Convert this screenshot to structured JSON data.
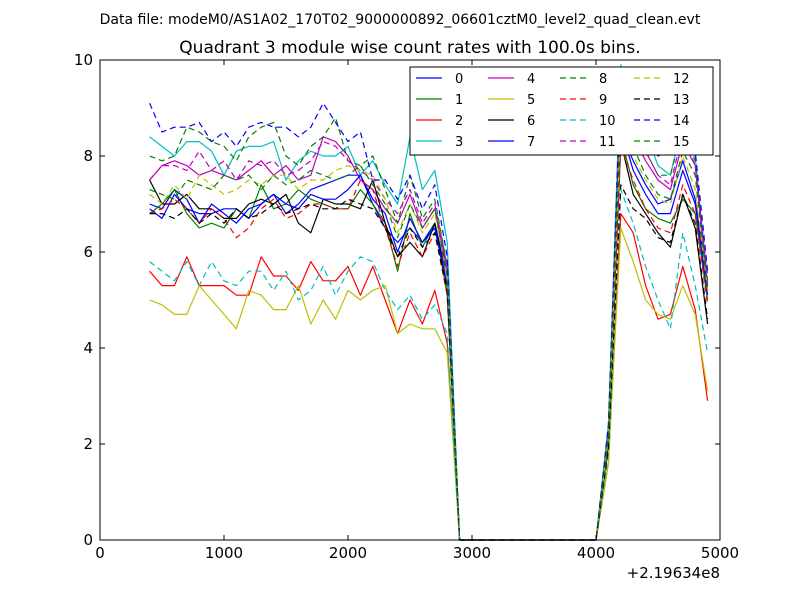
{
  "figure": {
    "suptitle": "Data file: modeM0/AS1A02_170T02_9000000892_06601cztM0_level2_quad_clean.evt"
  },
  "chart_data": {
    "type": "line",
    "title": "Quadrant 3 module wise count rates with 100.0s bins.",
    "xlabel": "",
    "ylabel": "",
    "x_offset_label": "+2.19634e8",
    "xlim": [
      0,
      5000
    ],
    "ylim": [
      0,
      10
    ],
    "xticks": [
      0,
      1000,
      2000,
      3000,
      4000,
      5000
    ],
    "yticks": [
      0,
      2,
      4,
      6,
      8,
      10
    ],
    "grid": false,
    "legend_position": "top-right",
    "legend_columns": 4,
    "x": [
      400,
      500,
      600,
      700,
      800,
      900,
      1000,
      1100,
      1200,
      1300,
      1400,
      1500,
      1600,
      1700,
      1800,
      1900,
      2000,
      2100,
      2200,
      2300,
      2400,
      2500,
      2600,
      2700,
      2800,
      2900,
      3000,
      3100,
      3200,
      3300,
      3400,
      3500,
      3600,
      3700,
      3800,
      3900,
      4000,
      4100,
      4200,
      4300,
      4400,
      4500,
      4600,
      4700,
      4800,
      4900
    ],
    "series": [
      {
        "name": "0",
        "color": "#0000ff",
        "dash": "solid",
        "values": [
          7.0,
          6.9,
          7.3,
          7.1,
          6.6,
          7.0,
          6.8,
          6.6,
          6.9,
          7.0,
          7.2,
          6.8,
          7.0,
          7.3,
          7.4,
          7.5,
          7.6,
          7.6,
          7.0,
          6.5,
          6.2,
          6.5,
          6.2,
          6.6,
          5.5,
          0,
          0,
          0,
          0,
          0,
          0,
          0,
          0,
          0,
          0,
          0,
          0,
          2.0,
          8.5,
          7.9,
          7.4,
          7.0,
          7.1,
          7.9,
          7.1,
          5.3
        ]
      },
      {
        "name": "1",
        "color": "#008000",
        "dash": "solid",
        "values": [
          6.8,
          7.0,
          7.3,
          6.8,
          6.5,
          6.6,
          6.5,
          6.9,
          6.7,
          7.4,
          6.9,
          7.0,
          7.3,
          7.1,
          7.0,
          6.9,
          6.9,
          7.3,
          7.0,
          6.6,
          5.6,
          6.8,
          6.1,
          6.6,
          5.1,
          0,
          0,
          0,
          0,
          0,
          0,
          0,
          0,
          0,
          0,
          0,
          0,
          2.0,
          8.4,
          7.4,
          6.9,
          6.7,
          6.6,
          7.1,
          6.8,
          5.0
        ]
      },
      {
        "name": "2",
        "color": "#ff0000",
        "dash": "solid",
        "values": [
          5.6,
          5.3,
          5.3,
          5.9,
          5.3,
          5.3,
          5.3,
          5.1,
          5.1,
          5.9,
          5.5,
          5.5,
          5.2,
          5.8,
          5.4,
          5.4,
          5.7,
          5.1,
          5.7,
          5.0,
          4.3,
          5.0,
          4.5,
          5.2,
          4.1,
          0,
          0,
          0,
          0,
          0,
          0,
          0,
          0,
          0,
          0,
          0,
          0,
          1.6,
          6.8,
          6.4,
          5.3,
          4.6,
          4.7,
          5.7,
          4.8,
          2.9
        ]
      },
      {
        "name": "3",
        "color": "#00bfbf",
        "dash": "solid",
        "values": [
          8.4,
          8.2,
          8.0,
          8.3,
          8.3,
          8.1,
          7.6,
          8.1,
          8.2,
          8.2,
          8.3,
          7.5,
          7.9,
          8.1,
          8.0,
          8.0,
          8.2,
          7.6,
          7.9,
          7.4,
          7.0,
          8.4,
          7.3,
          7.7,
          6.2,
          0,
          0,
          0,
          0,
          0,
          0,
          0,
          0,
          0,
          0,
          0,
          0,
          2.4,
          9.9,
          9.0,
          8.5,
          7.8,
          7.6,
          8.7,
          8.0,
          5.2
        ]
      },
      {
        "name": "4",
        "color": "#bf00bf",
        "dash": "solid",
        "values": [
          7.5,
          7.8,
          7.9,
          7.8,
          7.6,
          7.7,
          7.6,
          7.5,
          7.7,
          7.9,
          7.6,
          7.8,
          7.5,
          7.6,
          8.4,
          8.3,
          8.0,
          7.5,
          7.3,
          6.9,
          6.6,
          7.2,
          6.5,
          6.9,
          5.6,
          0,
          0,
          0,
          0,
          0,
          0,
          0,
          0,
          0,
          0,
          0,
          0,
          2.1,
          9.1,
          8.4,
          7.9,
          7.5,
          7.3,
          8.3,
          7.8,
          5.3
        ]
      },
      {
        "name": "5",
        "color": "#bfbf00",
        "dash": "solid",
        "values": [
          5.0,
          4.9,
          4.7,
          4.7,
          5.3,
          5.0,
          4.7,
          4.4,
          5.2,
          5.1,
          4.8,
          4.8,
          5.3,
          4.5,
          5.0,
          4.6,
          5.2,
          5.0,
          5.2,
          5.3,
          4.3,
          4.5,
          4.4,
          4.4,
          3.9,
          0,
          0,
          0,
          0,
          0,
          0,
          0,
          0,
          0,
          0,
          0,
          0,
          1.6,
          6.5,
          5.8,
          5.0,
          4.7,
          4.6,
          5.3,
          4.7,
          3.1
        ]
      },
      {
        "name": "6",
        "color": "#000000",
        "dash": "solid",
        "values": [
          7.5,
          7.0,
          7.0,
          7.2,
          6.9,
          6.9,
          6.7,
          6.7,
          7.0,
          7.1,
          7.0,
          7.2,
          6.6,
          6.4,
          7.1,
          7.0,
          7.0,
          6.9,
          7.5,
          6.6,
          5.9,
          6.2,
          5.9,
          6.6,
          5.3,
          0,
          0,
          0,
          0,
          0,
          0,
          0,
          0,
          0,
          0,
          0,
          0,
          2.0,
          8.3,
          7.2,
          6.8,
          6.4,
          6.1,
          7.2,
          6.5,
          4.5
        ]
      },
      {
        "name": "7",
        "color": "#0000ff",
        "dash": "solid",
        "values": [
          6.9,
          6.7,
          7.2,
          6.9,
          6.8,
          6.8,
          6.9,
          6.9,
          6.7,
          7.0,
          7.2,
          7.0,
          6.9,
          7.2,
          7.1,
          7.1,
          7.3,
          7.6,
          7.1,
          6.8,
          6.0,
          6.7,
          6.2,
          6.5,
          5.3,
          0,
          0,
          0,
          0,
          0,
          0,
          0,
          0,
          0,
          0,
          0,
          0,
          2.1,
          8.6,
          7.7,
          7.2,
          6.8,
          6.8,
          7.7,
          7.0,
          5.1
        ]
      },
      {
        "name": "8",
        "color": "#008000",
        "dash": "dashed",
        "values": [
          8.0,
          7.9,
          8.0,
          8.6,
          8.5,
          8.3,
          8.2,
          7.9,
          8.4,
          8.6,
          8.7,
          8.0,
          7.8,
          8.2,
          8.4,
          8.8,
          7.9,
          7.8,
          8.0,
          7.3,
          6.6,
          7.6,
          6.7,
          7.1,
          5.7,
          0,
          0,
          0,
          0,
          0,
          0,
          0,
          0,
          0,
          0,
          0,
          0,
          2.3,
          9.3,
          8.6,
          8.1,
          7.6,
          7.6,
          8.6,
          7.9,
          5.4
        ]
      },
      {
        "name": "9",
        "color": "#ff0000",
        "dash": "dashed",
        "values": [
          6.8,
          6.9,
          7.1,
          6.9,
          6.6,
          6.9,
          6.7,
          6.3,
          6.5,
          6.9,
          7.1,
          6.7,
          6.8,
          7.0,
          7.0,
          6.9,
          6.9,
          7.5,
          7.3,
          6.5,
          5.7,
          6.4,
          5.9,
          6.4,
          5.1,
          0,
          0,
          0,
          0,
          0,
          0,
          0,
          0,
          0,
          0,
          0,
          0,
          1.9,
          8.2,
          7.5,
          6.9,
          6.5,
          6.4,
          7.4,
          6.8,
          4.9
        ]
      },
      {
        "name": "10",
        "color": "#00bfbf",
        "dash": "dashed",
        "values": [
          5.8,
          5.6,
          5.4,
          5.8,
          5.3,
          5.8,
          5.4,
          5.3,
          5.6,
          5.6,
          5.2,
          5.6,
          5.0,
          5.2,
          5.7,
          5.1,
          5.6,
          5.9,
          5.8,
          5.2,
          4.8,
          5.1,
          4.6,
          4.9,
          4.3,
          0,
          0,
          0,
          0,
          0,
          0,
          0,
          0,
          0,
          0,
          0,
          0,
          1.8,
          7.3,
          6.6,
          5.7,
          5.0,
          4.4,
          6.4,
          5.3,
          3.9
        ]
      },
      {
        "name": "11",
        "color": "#bf00bf",
        "dash": "dashed",
        "values": [
          7.5,
          7.8,
          7.8,
          7.7,
          8.1,
          7.7,
          7.9,
          7.5,
          7.9,
          7.8,
          7.9,
          7.6,
          7.7,
          7.9,
          8.3,
          8.2,
          7.9,
          7.7,
          7.5,
          7.1,
          6.8,
          7.3,
          6.6,
          7.0,
          5.7,
          0,
          0,
          0,
          0,
          0,
          0,
          0,
          0,
          0,
          0,
          0,
          0,
          2.2,
          9.3,
          8.5,
          8.1,
          7.6,
          7.4,
          8.5,
          7.8,
          5.5
        ]
      },
      {
        "name": "12",
        "color": "#bfbf00",
        "dash": "dashed",
        "values": [
          7.2,
          7.0,
          7.4,
          7.1,
          7.6,
          7.4,
          7.2,
          7.3,
          7.5,
          7.4,
          7.6,
          7.6,
          7.3,
          7.5,
          7.5,
          7.7,
          7.8,
          7.7,
          7.6,
          7.1,
          6.4,
          7.0,
          6.4,
          6.8,
          5.5,
          0,
          0,
          0,
          0,
          0,
          0,
          0,
          0,
          0,
          0,
          0,
          0,
          2.1,
          8.7,
          8.0,
          7.5,
          7.1,
          7.0,
          8.0,
          7.3,
          5.2
        ]
      },
      {
        "name": "13",
        "color": "#000000",
        "dash": "dashed",
        "values": [
          6.8,
          6.8,
          6.7,
          6.9,
          6.6,
          6.8,
          6.6,
          6.9,
          6.7,
          6.8,
          7.0,
          6.8,
          6.9,
          7.0,
          6.9,
          6.9,
          7.1,
          7.0,
          6.9,
          6.5,
          5.9,
          6.5,
          6.1,
          6.4,
          5.2,
          0,
          0,
          0,
          0,
          0,
          0,
          0,
          0,
          0,
          0,
          0,
          0,
          1.9,
          7.4,
          6.9,
          6.7,
          6.3,
          6.2,
          7.2,
          6.6,
          4.6
        ]
      },
      {
        "name": "14",
        "color": "#0000ff",
        "dash": "dashed",
        "values": [
          9.1,
          8.5,
          8.6,
          8.6,
          8.7,
          8.3,
          8.5,
          8.2,
          8.6,
          8.7,
          8.6,
          8.6,
          8.4,
          8.6,
          9.1,
          8.7,
          8.3,
          8.5,
          7.5,
          7.5,
          7.1,
          7.6,
          6.9,
          7.4,
          5.9,
          0,
          0,
          0,
          0,
          0,
          0,
          0,
          0,
          0,
          0,
          0,
          0,
          2.4,
          9.7,
          8.9,
          8.3,
          8.0,
          8.1,
          9.2,
          8.1,
          5.6
        ]
      },
      {
        "name": "15",
        "color": "#008000",
        "dash": "dashed",
        "values": [
          7.3,
          7.2,
          7.1,
          7.5,
          7.4,
          7.3,
          7.6,
          7.5,
          7.6,
          7.3,
          7.6,
          7.4,
          7.5,
          7.7,
          7.6,
          7.5,
          7.6,
          7.8,
          7.4,
          7.0,
          6.3,
          7.0,
          6.5,
          6.9,
          5.5,
          0,
          0,
          0,
          0,
          0,
          0,
          0,
          0,
          0,
          0,
          0,
          0,
          2.1,
          9.0,
          8.2,
          7.6,
          7.2,
          7.1,
          8.1,
          7.6,
          5.2
        ]
      }
    ]
  }
}
